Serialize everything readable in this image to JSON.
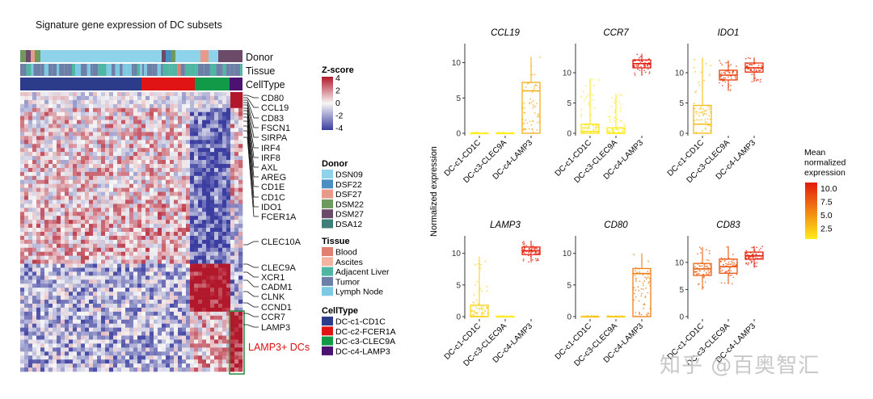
{
  "heatmap": {
    "title": "Signature gene expression of DC subsets",
    "track_labels": [
      "Donor",
      "Tissue",
      "CellType"
    ],
    "genes_top": [
      "CD80",
      "CCL19",
      "CD83",
      "FSCN1",
      "SIRPA",
      "IRF4",
      "IRF8",
      "AXL",
      "AREG",
      "CD1E",
      "CD1C",
      "IDO1",
      "FCER1A"
    ],
    "gene_mid": "CLEC10A",
    "genes_bottom": [
      "CLEC9A",
      "XCR1",
      "CADM1",
      "CLNK",
      "CCND1",
      "CCR7",
      "LAMP3"
    ],
    "highlight_label": "LAMP3+ DCs",
    "highlight_color": "#e01010",
    "zscore": {
      "title": "Z-score",
      "ticks": [
        "4",
        "2",
        "0",
        "-2",
        "-4"
      ],
      "high": "#b2182b",
      "mid": "#f7f7f7",
      "low": "#3b3ea0"
    },
    "donor": {
      "title": "Donor",
      "items": [
        {
          "label": "DSN09",
          "color": "#8fd3ea"
        },
        {
          "label": "DSF22",
          "color": "#4b8fc2"
        },
        {
          "label": "DSF27",
          "color": "#e79a8a"
        },
        {
          "label": "DSM22",
          "color": "#6f9a5e"
        },
        {
          "label": "DSM27",
          "color": "#6b4a6a"
        },
        {
          "label": "DSA12",
          "color": "#3f7f7a"
        }
      ]
    },
    "tissue": {
      "title": "Tissue",
      "items": [
        {
          "label": "Blood",
          "color": "#e07e72"
        },
        {
          "label": "Ascites",
          "color": "#f4b4a4"
        },
        {
          "label": "Adjacent Liver",
          "color": "#4fb6a4"
        },
        {
          "label": "Tumor",
          "color": "#6c7fa6"
        },
        {
          "label": "Lymph Node",
          "color": "#7dc9e4"
        }
      ]
    },
    "celltype": {
      "title": "CellType",
      "items": [
        {
          "label": "DC-c1-CD1C",
          "color": "#2c3b8a"
        },
        {
          "label": "DC-c2-FCER1A",
          "color": "#e01414"
        },
        {
          "label": "DC-c3-CLEC9A",
          "color": "#129a48"
        },
        {
          "label": "DC-c4-LAMP3",
          "color": "#4b1272"
        }
      ]
    }
  },
  "chart_data": [
    {
      "type": "box",
      "title": "CCL19",
      "categories": [
        "DC-c1-CD1C",
        "DC-c3-CLEC9A",
        "DC-c4-LAMP3"
      ],
      "ylim": [
        0,
        12
      ],
      "yticks": [
        0,
        5,
        10
      ],
      "boxes": [
        {
          "q1": 0,
          "median": 0,
          "q3": 0,
          "lo": 0,
          "hi": 0,
          "mean": 1.2
        },
        {
          "q1": 0,
          "median": 0,
          "q3": 0,
          "lo": 0,
          "hi": 0,
          "mean": 1.0
        },
        {
          "q1": 0,
          "median": 6.0,
          "q3": 7.2,
          "lo": 0,
          "hi": 10.8,
          "mean": 4.2
        }
      ]
    },
    {
      "type": "box",
      "title": "CCR7",
      "categories": [
        "DC-c1-CD1C",
        "DC-c3-CLEC9A",
        "DC-c4-LAMP3"
      ],
      "ylim": [
        0,
        14
      ],
      "yticks": [
        0,
        5,
        10
      ],
      "boxes": [
        {
          "q1": 0,
          "median": 0.3,
          "q3": 1.5,
          "lo": 0,
          "hi": 9.0,
          "mean": 1.8
        },
        {
          "q1": 0,
          "median": 0,
          "q3": 0.9,
          "lo": 0,
          "hi": 6.5,
          "mean": 1.6
        },
        {
          "q1": 10.8,
          "median": 11.5,
          "q3": 12.1,
          "lo": 9.5,
          "hi": 13.1,
          "mean": 10.6
        }
      ]
    },
    {
      "type": "box",
      "title": "IDO1",
      "categories": [
        "DC-c1-CD1C",
        "DC-c3-CLEC9A",
        "DC-c4-LAMP3"
      ],
      "ylim": [
        0,
        14
      ],
      "yticks": [
        0,
        5,
        10
      ],
      "boxes": [
        {
          "q1": 0,
          "median": 1.5,
          "q3": 4.6,
          "lo": 0,
          "hi": 12.5,
          "mean": 3.6
        },
        {
          "q1": 8.8,
          "median": 9.6,
          "q3": 10.4,
          "lo": 7.0,
          "hi": 12.0,
          "mean": 8.8
        },
        {
          "q1": 10.1,
          "median": 10.8,
          "q3": 11.6,
          "lo": 8.5,
          "hi": 12.5,
          "mean": 9.6
        }
      ]
    },
    {
      "type": "box",
      "title": "LAMP3",
      "categories": [
        "DC-c1-CD1C",
        "DC-c3-CLEC9A",
        "DC-c4-LAMP3"
      ],
      "ylim": [
        0,
        12
      ],
      "yticks": [
        0,
        5,
        10
      ],
      "boxes": [
        {
          "q1": 0,
          "median": 0,
          "q3": 1.8,
          "lo": 0,
          "hi": 9.5,
          "mean": 2.6
        },
        {
          "q1": 0,
          "median": 0,
          "q3": 0,
          "lo": 0,
          "hi": 0,
          "mean": 1.6
        },
        {
          "q1": 9.8,
          "median": 10.4,
          "q3": 11.0,
          "lo": 8.6,
          "hi": 12.0,
          "mean": 10.2
        }
      ]
    },
    {
      "type": "box",
      "title": "CD80",
      "categories": [
        "DC-c1-CD1C",
        "DC-c3-CLEC9A",
        "DC-c4-LAMP3"
      ],
      "ylim": [
        0,
        12
      ],
      "yticks": [
        0,
        5,
        10
      ],
      "boxes": [
        {
          "q1": 0,
          "median": 0,
          "q3": 0,
          "lo": 0,
          "hi": 0,
          "mean": 3.2
        },
        {
          "q1": 0,
          "median": 0,
          "q3": 0,
          "lo": 0,
          "hi": 0,
          "mean": 3.0
        },
        {
          "q1": 0,
          "median": 6.8,
          "q3": 7.6,
          "lo": 0,
          "hi": 10.0,
          "mean": 6.2
        }
      ]
    },
    {
      "type": "box",
      "title": "CD83",
      "categories": [
        "DC-c1-CD1C",
        "DC-c3-CLEC9A",
        "DC-c4-LAMP3"
      ],
      "ylim": [
        0,
        14
      ],
      "yticks": [
        0,
        5,
        10
      ],
      "boxes": [
        {
          "q1": 7.6,
          "median": 8.8,
          "q3": 9.8,
          "lo": 5.0,
          "hi": 12.8,
          "mean": 7.5
        },
        {
          "q1": 8.0,
          "median": 9.2,
          "q3": 10.6,
          "lo": 6.0,
          "hi": 13.0,
          "mean": 8.0
        },
        {
          "q1": 10.6,
          "median": 11.2,
          "q3": 11.9,
          "lo": 9.0,
          "hi": 13.0,
          "mean": 10.2
        }
      ]
    }
  ],
  "boxplots_axis": {
    "ylabel": "Normalized expression"
  },
  "mean_legend": {
    "title_lines": [
      "Mean",
      "normalized",
      "expression"
    ],
    "ticks": [
      "10.0",
      "7.5",
      "5.0",
      "2.5"
    ],
    "high": "#e31a0c",
    "low": "#ffec1a"
  },
  "watermark": "知乎 @百奥智汇"
}
